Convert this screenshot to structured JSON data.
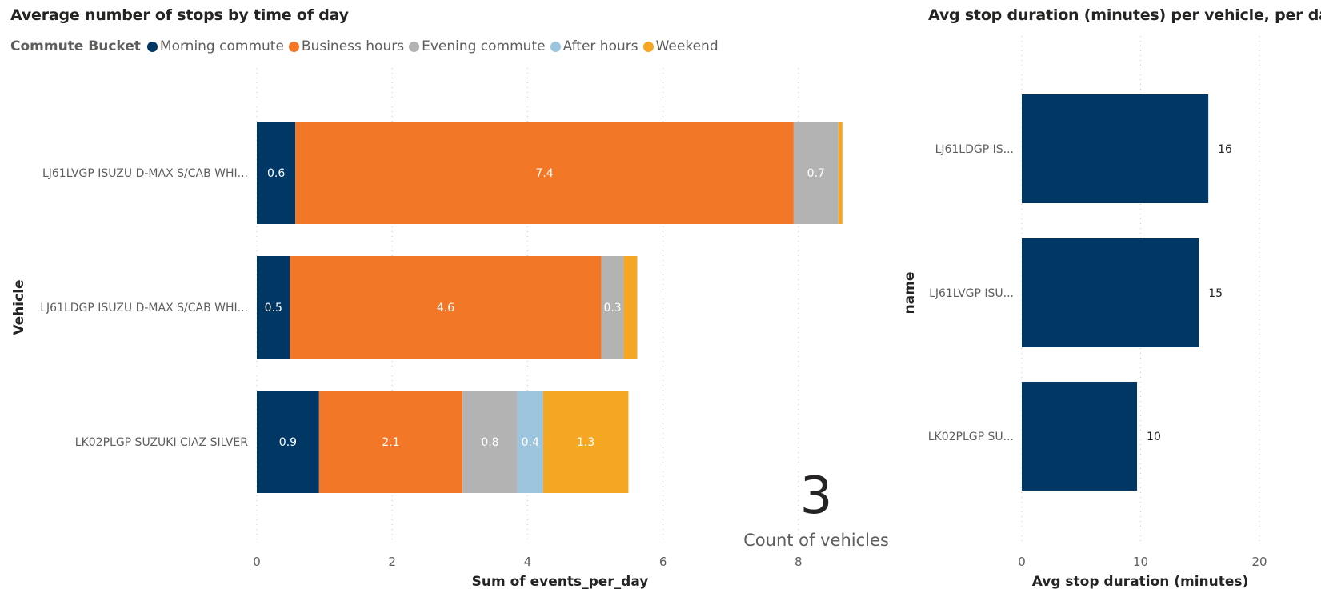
{
  "left_chart": {
    "title": "Average number of stops by time of day",
    "legend_title": "Commute Bucket",
    "xlabel": "Sum of events_per_day",
    "ylabel": "Vehicle"
  },
  "right_chart": {
    "title": "Avg stop duration (minutes) per vehicle, per day",
    "xlabel": "Avg stop duration (minutes)",
    "ylabel": "name"
  },
  "card": {
    "value": "3",
    "label": "Count of vehicles"
  },
  "colors": {
    "Morning commute": "#003764",
    "Business hours": "#F27727",
    "Evening commute": "#B3B3B3",
    "After hours": "#9DC5DE",
    "Weekend": "#F5A623"
  },
  "chart_data": [
    {
      "type": "bar",
      "orientation": "horizontal",
      "stacked": true,
      "title": "Average number of stops by time of day",
      "xlabel": "Sum of events_per_day",
      "ylabel": "Vehicle",
      "legend_title": "Commute Bucket",
      "legend_position": "top-left",
      "categories": [
        "LJ61LVGP ISUZU D-MAX S/CAB WHI...",
        "LJ61LDGP ISUZU D-MAX S/CAB WHI...",
        "LK02PLGP SUZUKI CIAZ SILVER"
      ],
      "series": [
        {
          "name": "Morning commute",
          "values": [
            0.57,
            0.49,
            0.92
          ],
          "labels": [
            "0.6",
            "0.5",
            "0.9"
          ]
        },
        {
          "name": "Business hours",
          "values": [
            7.36,
            4.6,
            2.12
          ],
          "labels": [
            "7.4",
            "4.6",
            "2.1"
          ]
        },
        {
          "name": "Evening commute",
          "values": [
            0.66,
            0.33,
            0.81
          ],
          "labels": [
            "0.7",
            "0.3",
            "0.8"
          ]
        },
        {
          "name": "After hours",
          "values": [
            0,
            0,
            0.38
          ],
          "labels": [
            "",
            "",
            "0.4"
          ]
        },
        {
          "name": "Weekend",
          "values": [
            0.06,
            0.2,
            1.26
          ],
          "labels": [
            "",
            "",
            "1.3"
          ]
        }
      ],
      "xlim": [
        0,
        9
      ],
      "xticks": [
        0,
        2,
        4,
        6,
        8
      ],
      "grid": true
    },
    {
      "type": "bar",
      "orientation": "horizontal",
      "title": "Avg stop duration (minutes) per vehicle, per day",
      "xlabel": "Avg stop duration (minutes)",
      "ylabel": "name",
      "categories": [
        "LJ61LDGP IS...",
        "LJ61LVGP ISU...",
        "LK02PLGP SU..."
      ],
      "values": [
        15.7,
        14.9,
        9.7
      ],
      "labels": [
        "16",
        "15",
        "10"
      ],
      "xlim": [
        0,
        20
      ],
      "xticks": [
        0,
        10,
        20
      ],
      "grid": true
    }
  ]
}
